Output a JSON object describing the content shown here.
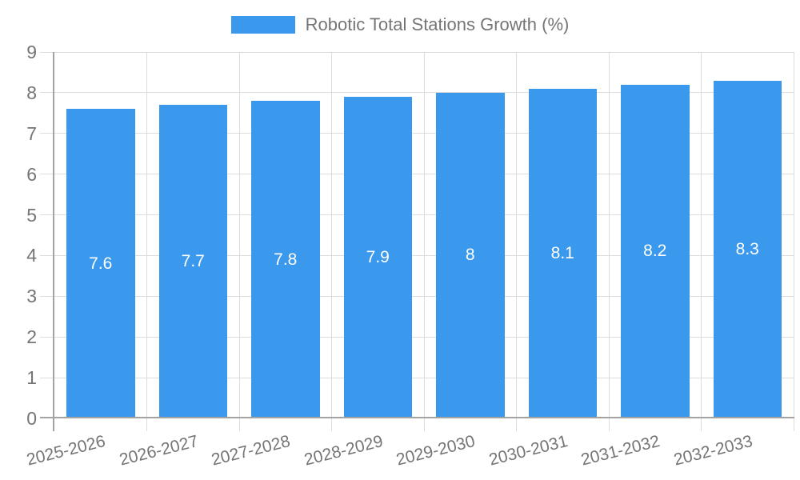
{
  "legend": {
    "label": "Robotic Total Stations Growth (%)"
  },
  "chart_data": {
    "type": "bar",
    "title": "Robotic Total Stations Growth (%)",
    "categories": [
      "2025-2026",
      "2026-2027",
      "2027-2028",
      "2028-2029",
      "2029-2030",
      "2030-2031",
      "2031-2032",
      "2032-2033"
    ],
    "values": [
      7.6,
      7.7,
      7.8,
      7.9,
      8,
      8.1,
      8.2,
      8.3
    ],
    "value_labels": [
      "7.6",
      "7.7",
      "7.8",
      "7.9",
      "8",
      "8.1",
      "8.2",
      "8.3"
    ],
    "yticks": [
      "0",
      "1",
      "2",
      "3",
      "4",
      "5",
      "6",
      "7",
      "8",
      "9"
    ],
    "ylim": [
      0,
      9
    ],
    "xlabel": "",
    "ylabel": "",
    "grid": true,
    "legend_position": "top-center",
    "colors": {
      "bar": "#3a99ec",
      "value_label": "#ffffff",
      "axis_text": "#757575",
      "axis_line": "#a3a3a3",
      "gridline": "#dcdcdc",
      "background": "#ffffff"
    }
  }
}
